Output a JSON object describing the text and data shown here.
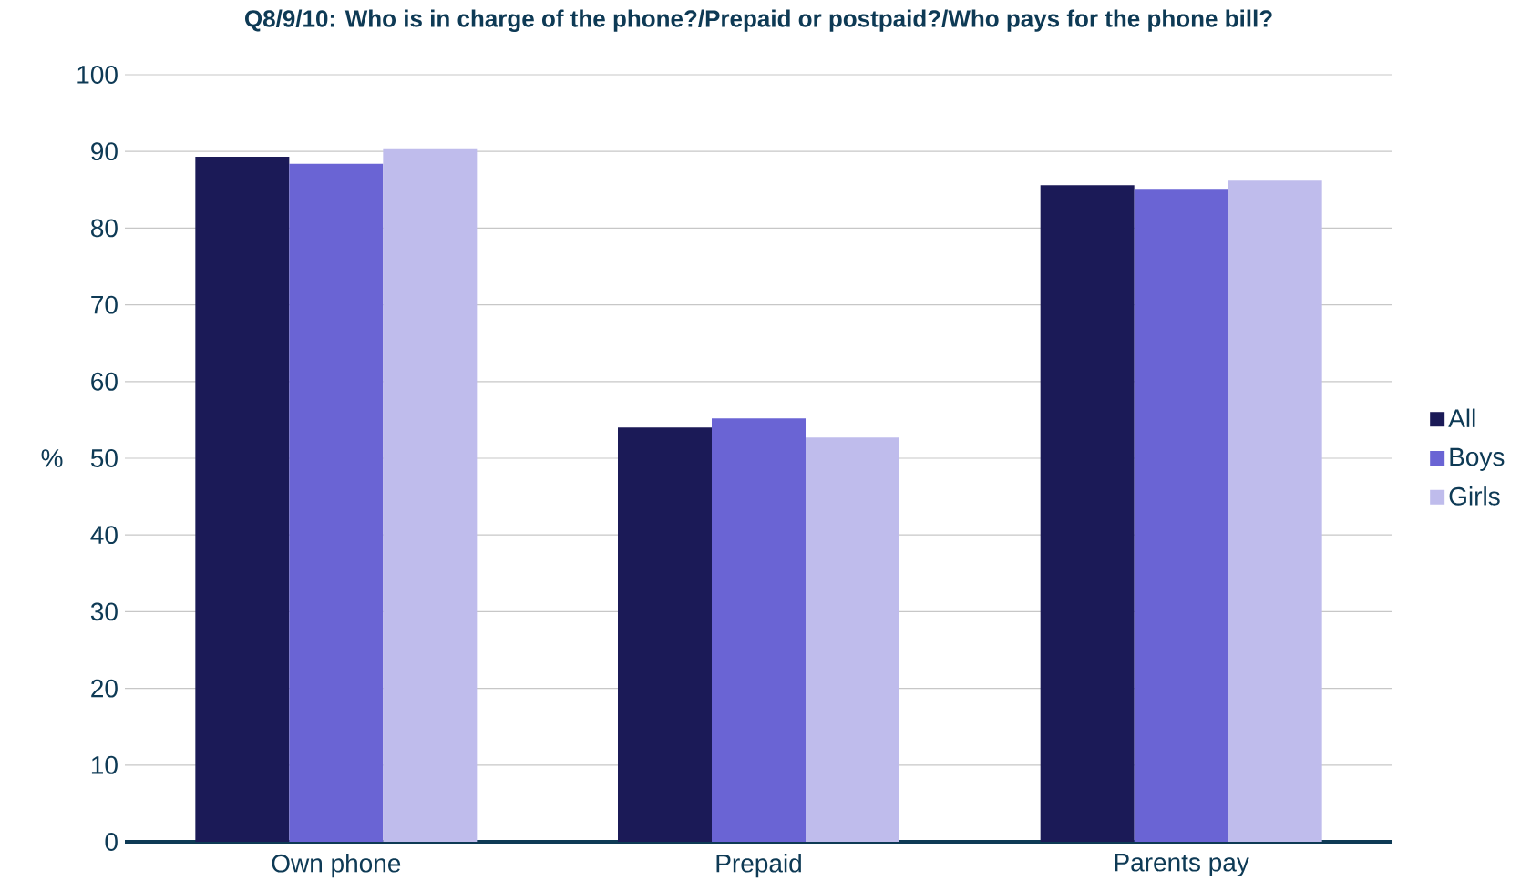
{
  "chart_data": {
    "type": "bar",
    "title": "Q8/9/10: Who is in charge of the phone?/Prepaid or postpaid?/Who pays for the phone bill?",
    "ylabel": "%",
    "categories": [
      "Own phone",
      "Prepaid",
      "Parents pay"
    ],
    "series": [
      {
        "name": "All",
        "color": "#1b1a57",
        "values": [
          89.3,
          54.0,
          85.6
        ]
      },
      {
        "name": "Boys",
        "color": "#6a64d4",
        "values": [
          88.4,
          55.2,
          85.0
        ]
      },
      {
        "name": "Girls",
        "color": "#bfbcec",
        "values": [
          90.3,
          52.7,
          86.2
        ]
      }
    ],
    "ylim": [
      0,
      100
    ],
    "yticks": [
      0,
      10,
      20,
      30,
      40,
      50,
      60,
      70,
      80,
      90,
      100
    ],
    "grid": "y",
    "legend": "right"
  }
}
